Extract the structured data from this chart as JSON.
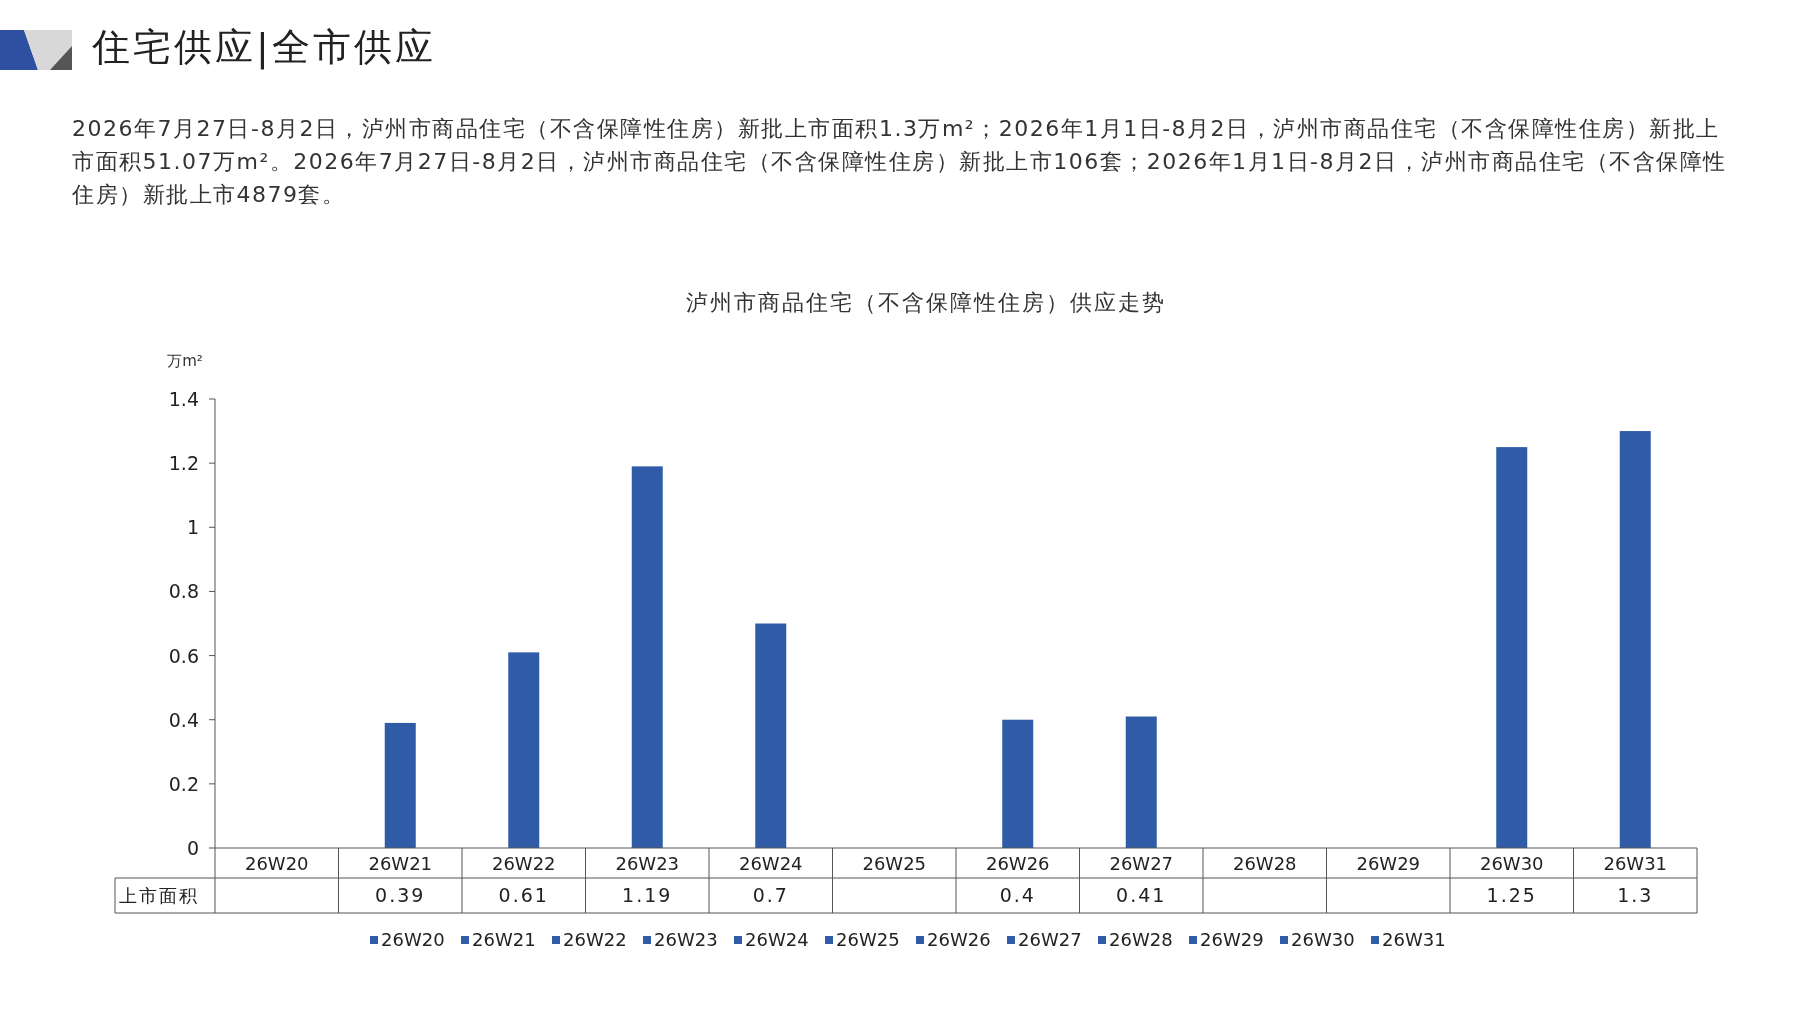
{
  "chart_data": {
    "type": "bar",
    "title": "泸州市商品住宅（不含保障性住房）供应走势",
    "ylabel": "万m²",
    "annotations": [
      "住宅供应|全市供应",
      "2026年7月27日-8月2日，泸州市商品住宅（不含保障性住房）新批上市面积1.3万m²；2026年1月1日-8月2日，泸州市商品住宅（不含保障性住房）新批上市面积51.07万m²。2026年7月27日-8月2日，泸州市商品住宅（不含保障性住房）新批上市106套；2026年1月1日-8月2日，泸州市商品住宅（不含保障性住房）新批上市4879套。"
    ],
    "categories": [
      "26W20",
      "26W21",
      "26W22",
      "26W23",
      "26W24",
      "26W25",
      "26W26",
      "26W27",
      "26W28",
      "26W29",
      "26W30",
      "26W31"
    ],
    "series": [
      {
        "name": "上市面积",
        "color": "#2f5ba7",
        "values": [
          null,
          0.39,
          0.61,
          1.19,
          0.7,
          null,
          0.4,
          0.41,
          null,
          null,
          1.25,
          1.3
        ]
      }
    ],
    "ylim": [
      0,
      1.4
    ],
    "yticks": [
      0,
      0.2,
      0.4,
      0.6,
      0.8,
      1,
      1.2,
      1.4
    ],
    "data_labels": true,
    "legend": "bottom",
    "grid": false
  }
}
